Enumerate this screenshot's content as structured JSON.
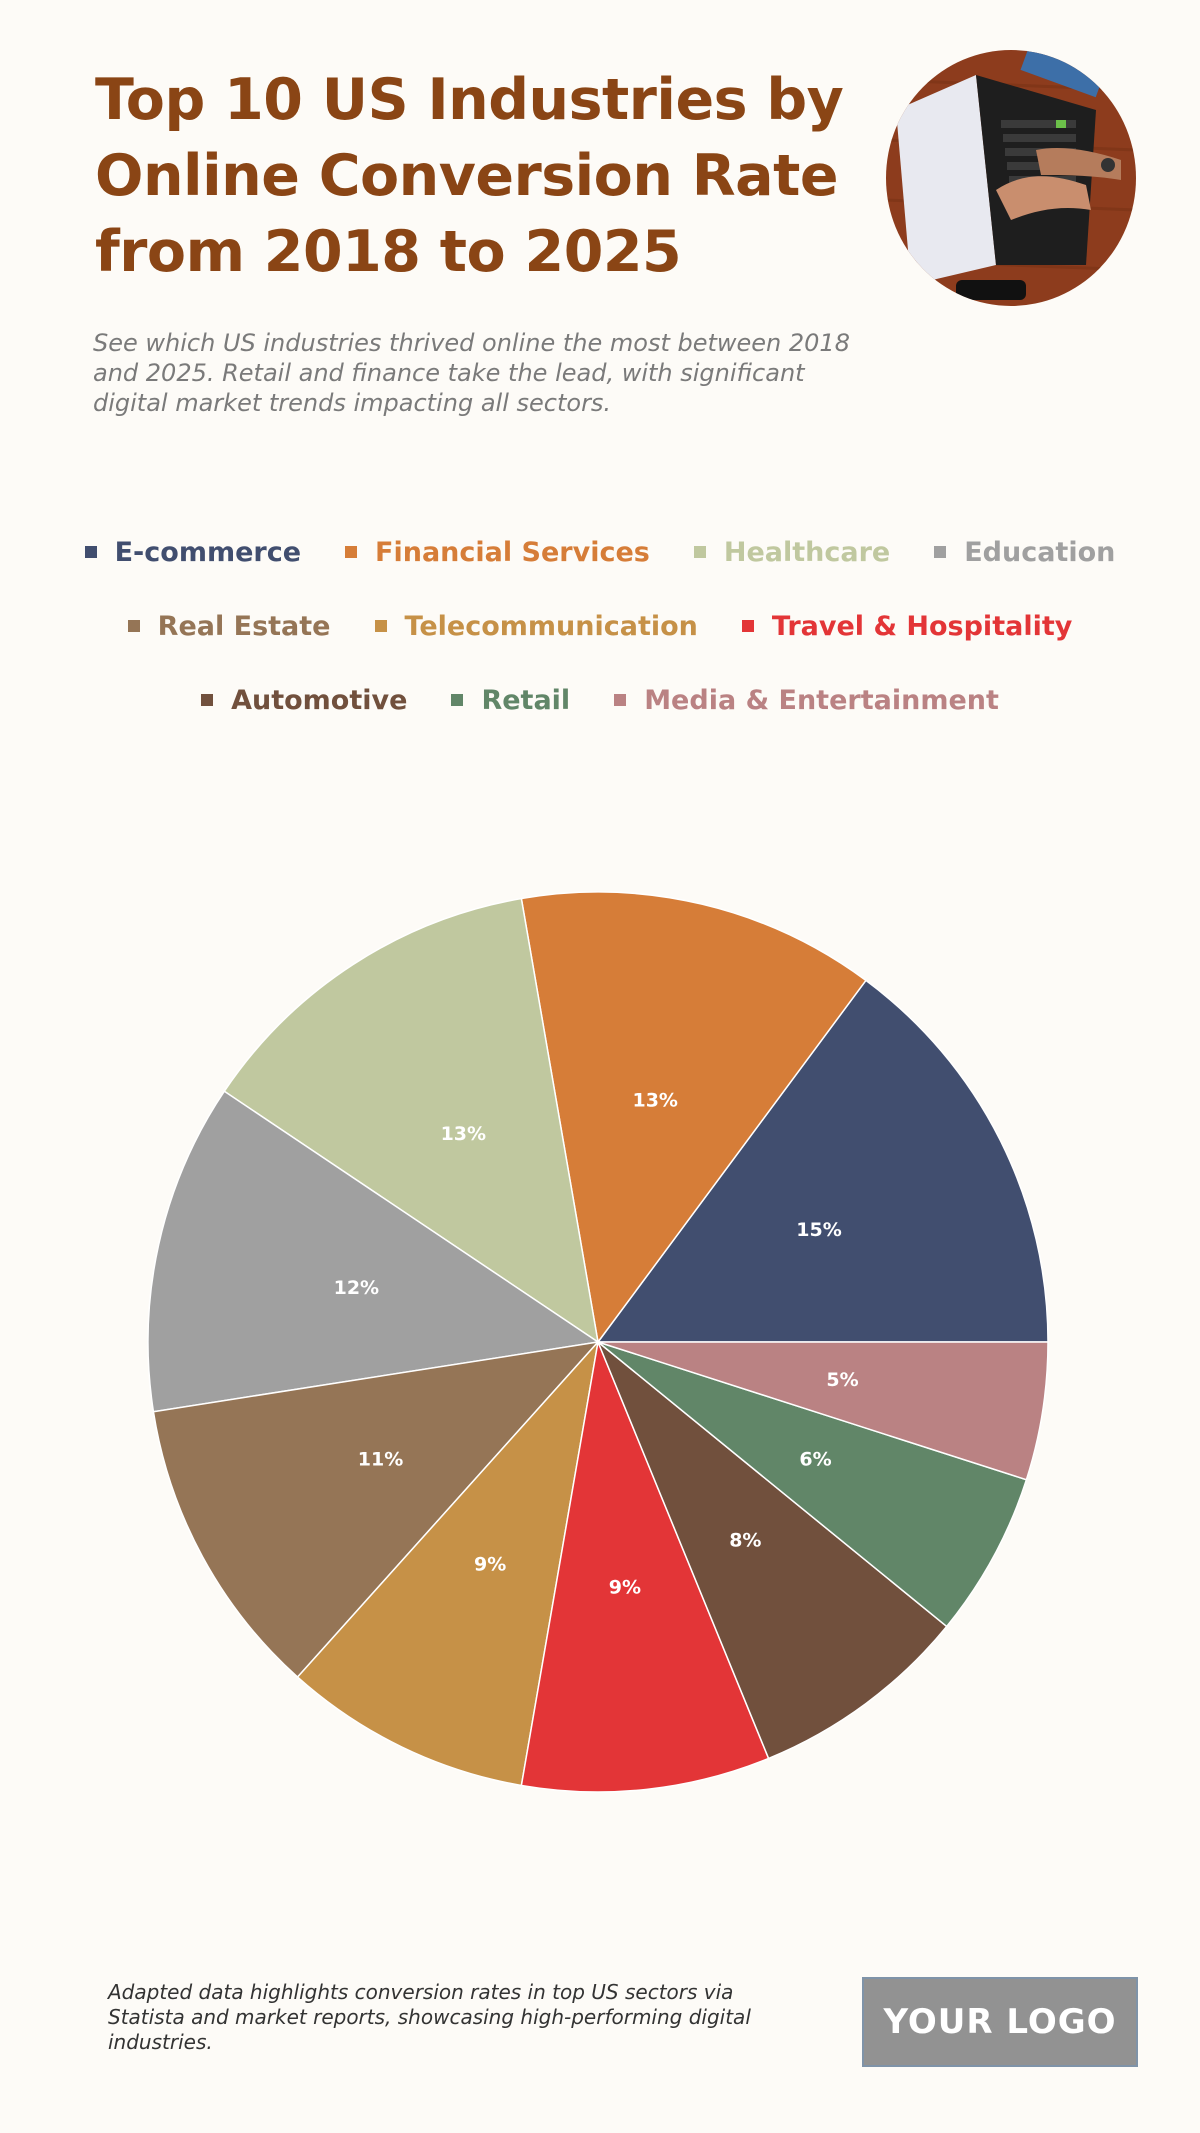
{
  "header": {
    "title": "Top 10 US Industries by Online Conversion Rate from 2018 to 2025",
    "subtitle": "See which US industries thrived online the most between 2018 and 2025. Retail and finance take the lead, with significant digital market trends impacting all sectors."
  },
  "footer": {
    "note": "Adapted data highlights conversion rates in top US sectors via Statista and market reports, showcasing high-performing digital industries.",
    "logo_text": "YOUR LOGO"
  },
  "chart_data": {
    "type": "pie",
    "title": "Top 10 US Industries by Online Conversion Rate from 2018 to 2025",
    "legend_position": "top",
    "categories": [
      "E-commerce",
      "Financial Services",
      "Healthcare",
      "Education",
      "Real Estate",
      "Telecommunication",
      "Travel & Hospitality",
      "Automotive",
      "Retail",
      "Media & Entertainment"
    ],
    "values": [
      15,
      13,
      13,
      12,
      11,
      9,
      9,
      8,
      6,
      5
    ],
    "labels": [
      "15%",
      "13%",
      "13%",
      "12%",
      "11%",
      "9%",
      "9%",
      "8%",
      "6%",
      "5%"
    ],
    "colors": [
      "#414e6f",
      "#d67d38",
      "#c0c89f",
      "#a0a0a0",
      "#957556",
      "#c69147",
      "#e33537",
      "#71503d",
      "#618668",
      "#ba8283"
    ]
  }
}
